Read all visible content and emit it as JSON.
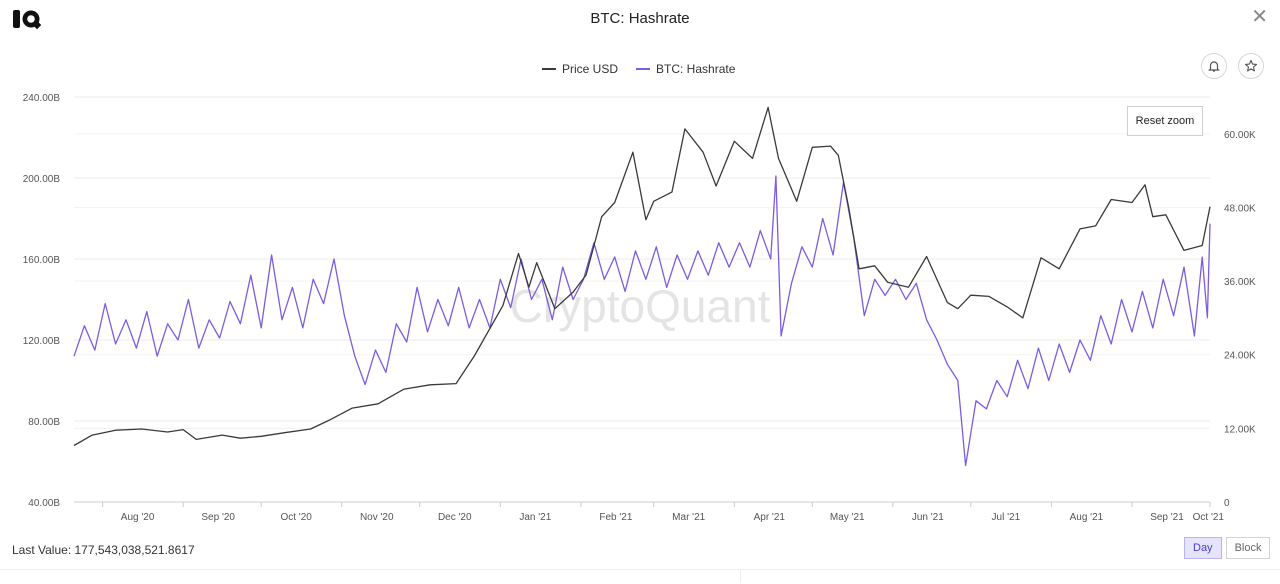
{
  "header": {
    "title": "BTC: Hashrate"
  },
  "legend": [
    {
      "label": "Price USD",
      "color": "#3a3a3a"
    },
    {
      "label": "BTC: Hashrate",
      "color": "#7c5ce0"
    }
  ],
  "controls": {
    "reset_zoom": "Reset zoom",
    "day": "Day",
    "block": "Block"
  },
  "footer": {
    "last_value_label": "Last Value:",
    "last_value": "177,543,038,521.8617"
  },
  "watermark": "CryptoQuant",
  "chart_data": {
    "type": "line",
    "title": "BTC: Hashrate",
    "x_ticks": [
      "Aug '20",
      "Sep '20",
      "Oct '20",
      "Nov '20",
      "Dec '20",
      "Jan '21",
      "Feb '21",
      "Mar '21",
      "Apr '21",
      "May '21",
      "Jun '21",
      "Jul '21",
      "Aug '21",
      "Sep '21",
      "Oct '21"
    ],
    "x_range": [
      "2020-07-21",
      "2021-10-01"
    ],
    "y_left": {
      "ticks": [
        "40.00B",
        "80.00B",
        "120.00B",
        "160.00B",
        "200.00B",
        "240.00B"
      ],
      "range": [
        40,
        240
      ],
      "unit": "B"
    },
    "y_right": {
      "ticks": [
        "0",
        "12.00K",
        "24.00K",
        "36.00K",
        "48.00K",
        "60.00K"
      ],
      "range": [
        0,
        66000
      ]
    },
    "grid": true,
    "legend_position": "top",
    "series": [
      {
        "name": "BTC: Hashrate",
        "axis": "left",
        "color": "#7c5ce0",
        "points": [
          [
            "2020-07-21",
            112
          ],
          [
            "2020-07-25",
            127
          ],
          [
            "2020-07-29",
            115
          ],
          [
            "2020-08-02",
            138
          ],
          [
            "2020-08-06",
            118
          ],
          [
            "2020-08-10",
            130
          ],
          [
            "2020-08-14",
            116
          ],
          [
            "2020-08-18",
            134
          ],
          [
            "2020-08-22",
            112
          ],
          [
            "2020-08-26",
            128
          ],
          [
            "2020-08-30",
            120
          ],
          [
            "2020-09-03",
            140
          ],
          [
            "2020-09-07",
            116
          ],
          [
            "2020-09-11",
            130
          ],
          [
            "2020-09-15",
            121
          ],
          [
            "2020-09-19",
            139
          ],
          [
            "2020-09-23",
            128
          ],
          [
            "2020-09-27",
            152
          ],
          [
            "2020-10-01",
            126
          ],
          [
            "2020-10-05",
            162
          ],
          [
            "2020-10-09",
            130
          ],
          [
            "2020-10-13",
            146
          ],
          [
            "2020-10-17",
            126
          ],
          [
            "2020-10-21",
            150
          ],
          [
            "2020-10-25",
            138
          ],
          [
            "2020-10-29",
            160
          ],
          [
            "2020-11-02",
            132
          ],
          [
            "2020-11-06",
            112
          ],
          [
            "2020-11-10",
            98
          ],
          [
            "2020-11-14",
            115
          ],
          [
            "2020-11-18",
            104
          ],
          [
            "2020-11-22",
            128
          ],
          [
            "2020-11-26",
            119
          ],
          [
            "2020-11-30",
            146
          ],
          [
            "2020-12-04",
            124
          ],
          [
            "2020-12-08",
            140
          ],
          [
            "2020-12-12",
            127
          ],
          [
            "2020-12-16",
            146
          ],
          [
            "2020-12-20",
            126
          ],
          [
            "2020-12-24",
            140
          ],
          [
            "2020-12-28",
            126
          ],
          [
            "2021-01-01",
            150
          ],
          [
            "2021-01-05",
            136
          ],
          [
            "2021-01-09",
            160
          ],
          [
            "2021-01-13",
            140
          ],
          [
            "2021-01-17",
            150
          ],
          [
            "2021-01-21",
            130
          ],
          [
            "2021-01-25",
            156
          ],
          [
            "2021-01-29",
            140
          ],
          [
            "2021-02-02",
            150
          ],
          [
            "2021-02-06",
            168
          ],
          [
            "2021-02-10",
            150
          ],
          [
            "2021-02-14",
            161
          ],
          [
            "2021-02-18",
            144
          ],
          [
            "2021-02-22",
            164
          ],
          [
            "2021-02-26",
            150
          ],
          [
            "2021-03-02",
            166
          ],
          [
            "2021-03-06",
            146
          ],
          [
            "2021-03-10",
            162
          ],
          [
            "2021-03-14",
            150
          ],
          [
            "2021-03-18",
            164
          ],
          [
            "2021-03-22",
            152
          ],
          [
            "2021-03-26",
            168
          ],
          [
            "2021-03-30",
            156
          ],
          [
            "2021-04-03",
            168
          ],
          [
            "2021-04-07",
            156
          ],
          [
            "2021-04-11",
            174
          ],
          [
            "2021-04-15",
            160
          ],
          [
            "2021-04-17",
            201
          ],
          [
            "2021-04-19",
            122
          ],
          [
            "2021-04-23",
            148
          ],
          [
            "2021-04-27",
            166
          ],
          [
            "2021-05-01",
            156
          ],
          [
            "2021-05-05",
            180
          ],
          [
            "2021-05-09",
            162
          ],
          [
            "2021-05-13",
            198
          ],
          [
            "2021-05-17",
            170
          ],
          [
            "2021-05-21",
            132
          ],
          [
            "2021-05-25",
            150
          ],
          [
            "2021-05-29",
            142
          ],
          [
            "2021-06-02",
            150
          ],
          [
            "2021-06-06",
            140
          ],
          [
            "2021-06-10",
            148
          ],
          [
            "2021-06-14",
            130
          ],
          [
            "2021-06-18",
            120
          ],
          [
            "2021-06-22",
            108
          ],
          [
            "2021-06-26",
            100
          ],
          [
            "2021-06-29",
            58
          ],
          [
            "2021-07-03",
            90
          ],
          [
            "2021-07-07",
            86
          ],
          [
            "2021-07-11",
            100
          ],
          [
            "2021-07-15",
            92
          ],
          [
            "2021-07-19",
            110
          ],
          [
            "2021-07-23",
            96
          ],
          [
            "2021-07-27",
            116
          ],
          [
            "2021-07-31",
            100
          ],
          [
            "2021-08-04",
            118
          ],
          [
            "2021-08-08",
            104
          ],
          [
            "2021-08-12",
            120
          ],
          [
            "2021-08-16",
            110
          ],
          [
            "2021-08-20",
            132
          ],
          [
            "2021-08-24",
            118
          ],
          [
            "2021-08-28",
            140
          ],
          [
            "2021-09-01",
            124
          ],
          [
            "2021-09-05",
            144
          ],
          [
            "2021-09-09",
            126
          ],
          [
            "2021-09-13",
            150
          ],
          [
            "2021-09-17",
            132
          ],
          [
            "2021-09-21",
            156
          ],
          [
            "2021-09-25",
            122
          ],
          [
            "2021-09-28",
            161
          ],
          [
            "2021-09-30",
            131
          ],
          [
            "2021-10-01",
            177.5
          ]
        ]
      },
      {
        "name": "Price USD",
        "axis": "right",
        "color": "#3a3a3a",
        "points": [
          [
            "2020-07-21",
            9200
          ],
          [
            "2020-07-28",
            10900
          ],
          [
            "2020-08-06",
            11700
          ],
          [
            "2020-08-16",
            11900
          ],
          [
            "2020-08-26",
            11400
          ],
          [
            "2020-09-01",
            11800
          ],
          [
            "2020-09-06",
            10200
          ],
          [
            "2020-09-16",
            10900
          ],
          [
            "2020-09-23",
            10400
          ],
          [
            "2020-10-01",
            10700
          ],
          [
            "2020-10-10",
            11300
          ],
          [
            "2020-10-20",
            11900
          ],
          [
            "2020-10-27",
            13300
          ],
          [
            "2020-11-05",
            15300
          ],
          [
            "2020-11-15",
            16000
          ],
          [
            "2020-11-25",
            18400
          ],
          [
            "2020-12-05",
            19100
          ],
          [
            "2020-12-15",
            19300
          ],
          [
            "2020-12-22",
            23800
          ],
          [
            "2021-01-02",
            32000
          ],
          [
            "2021-01-08",
            40500
          ],
          [
            "2021-01-12",
            35000
          ],
          [
            "2021-01-15",
            39000
          ],
          [
            "2021-01-22",
            31500
          ],
          [
            "2021-01-29",
            34200
          ],
          [
            "2021-02-03",
            37000
          ],
          [
            "2021-02-09",
            46500
          ],
          [
            "2021-02-14",
            48800
          ],
          [
            "2021-02-21",
            57000
          ],
          [
            "2021-02-26",
            46000
          ],
          [
            "2021-03-01",
            49000
          ],
          [
            "2021-03-08",
            50500
          ],
          [
            "2021-03-13",
            60800
          ],
          [
            "2021-03-20",
            57000
          ],
          [
            "2021-03-25",
            51500
          ],
          [
            "2021-04-01",
            58800
          ],
          [
            "2021-04-08",
            56000
          ],
          [
            "2021-04-14",
            64300
          ],
          [
            "2021-04-18",
            56000
          ],
          [
            "2021-04-25",
            49000
          ],
          [
            "2021-05-01",
            57800
          ],
          [
            "2021-05-08",
            58000
          ],
          [
            "2021-05-11",
            56500
          ],
          [
            "2021-05-15",
            48000
          ],
          [
            "2021-05-19",
            38000
          ],
          [
            "2021-05-25",
            38500
          ],
          [
            "2021-05-30",
            35800
          ],
          [
            "2021-06-07",
            35000
          ],
          [
            "2021-06-14",
            40000
          ],
          [
            "2021-06-22",
            32500
          ],
          [
            "2021-06-26",
            31500
          ],
          [
            "2021-07-01",
            33700
          ],
          [
            "2021-07-08",
            33500
          ],
          [
            "2021-07-15",
            31800
          ],
          [
            "2021-07-21",
            30000
          ],
          [
            "2021-07-28",
            39800
          ],
          [
            "2021-08-04",
            38000
          ],
          [
            "2021-08-12",
            44500
          ],
          [
            "2021-08-18",
            45000
          ],
          [
            "2021-08-24",
            49300
          ],
          [
            "2021-09-01",
            48800
          ],
          [
            "2021-09-06",
            51700
          ],
          [
            "2021-09-09",
            46500
          ],
          [
            "2021-09-14",
            46800
          ],
          [
            "2021-09-21",
            41000
          ],
          [
            "2021-09-28",
            41800
          ],
          [
            "2021-10-01",
            48100
          ]
        ]
      }
    ]
  }
}
